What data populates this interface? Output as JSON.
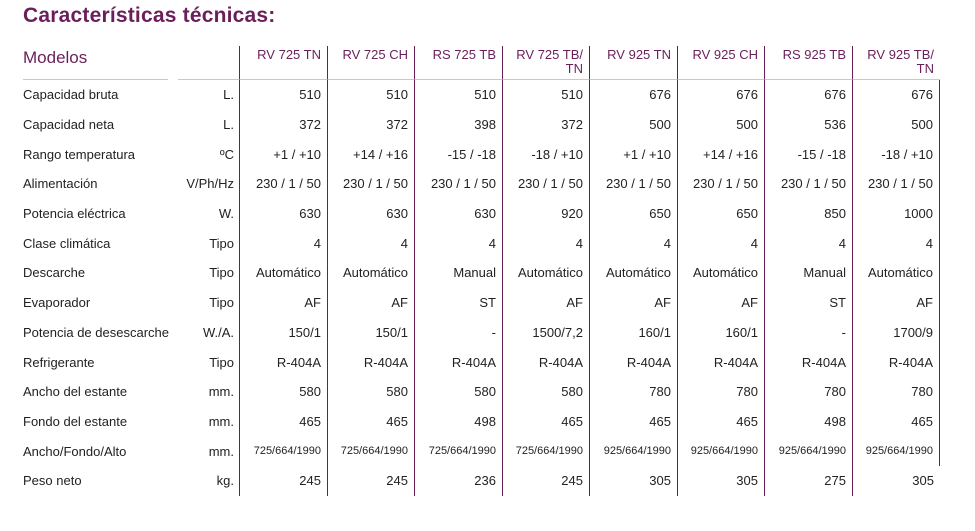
{
  "title": "Características técnicas:",
  "header": {
    "label": "Modelos",
    "models": [
      "RV 725 TN",
      "RV 725 CH",
      "RS 725 TB",
      "RV 725 TB/ TN",
      "RV 925 TN",
      "RV 925 CH",
      "RS 925 TB",
      "RV 925 TB/ TN"
    ]
  },
  "rows": [
    {
      "label": "Capacidad bruta",
      "unit": "L.",
      "values": [
        "510",
        "510",
        "510",
        "510",
        "676",
        "676",
        "676",
        "676"
      ]
    },
    {
      "label": "Capacidad neta",
      "unit": "L.",
      "values": [
        "372",
        "372",
        "398",
        "372",
        "500",
        "500",
        "536",
        "500"
      ]
    },
    {
      "label": "Rango temperatura",
      "unit": "ºC",
      "values": [
        "+1 / +10",
        "+14 / +16",
        "-15 / -18",
        "-18 / +10",
        "+1 / +10",
        "+14 / +16",
        "-15 / -18",
        "-18 / +10"
      ]
    },
    {
      "label": "Alimentación",
      "unit": "V/Ph/Hz",
      "values": [
        "230 / 1 / 50",
        "230 / 1 / 50",
        "230 / 1 / 50",
        "230 / 1 / 50",
        "230 / 1 / 50",
        "230 / 1 / 50",
        "230 / 1 / 50",
        "230 / 1 / 50"
      ]
    },
    {
      "label": "Potencia eléctrica",
      "unit": "W.",
      "values": [
        "630",
        "630",
        "630",
        "920",
        "650",
        "650",
        "850",
        "1000"
      ]
    },
    {
      "label": "Clase climática",
      "unit": "Tipo",
      "values": [
        "4",
        "4",
        "4",
        "4",
        "4",
        "4",
        "4",
        "4"
      ]
    },
    {
      "label": "Descarche",
      "unit": "Tipo",
      "values": [
        "Automático",
        "Automático",
        "Manual",
        "Automático",
        "Automático",
        "Automático",
        "Manual",
        "Automático"
      ]
    },
    {
      "label": "Evaporador",
      "unit": "Tipo",
      "values": [
        "AF",
        "AF",
        "ST",
        "AF",
        "AF",
        "AF",
        "ST",
        "AF"
      ]
    },
    {
      "label": "Potencia de desescarche",
      "unit": "W./A.",
      "values": [
        "150/1",
        "150/1",
        "-",
        "1500/7,2",
        "160/1",
        "160/1",
        "-",
        "1700/9"
      ]
    },
    {
      "label": "Refrigerante",
      "unit": "Tipo",
      "values": [
        "R-404A",
        "R-404A",
        "R-404A",
        "R-404A",
        "R-404A",
        "R-404A",
        "R-404A",
        "R-404A"
      ]
    },
    {
      "label": "Ancho del estante",
      "unit": "mm.",
      "values": [
        "580",
        "580",
        "580",
        "580",
        "780",
        "780",
        "780",
        "780"
      ]
    },
    {
      "label": "Fondo del estante",
      "unit": "mm.",
      "values": [
        "465",
        "465",
        "498",
        "465",
        "465",
        "465",
        "498",
        "465"
      ]
    },
    {
      "label": "Ancho/Fondo/Alto",
      "unit": "mm.",
      "values": [
        "725/664/1990",
        "725/664/1990",
        "725/664/1990",
        "725/664/1990",
        "925/664/1990",
        "925/664/1990",
        "925/664/1990",
        "925/664/1990"
      ]
    },
    {
      "label": "Peso neto",
      "unit": "kg.",
      "values": [
        "245",
        "245",
        "236",
        "245",
        "305",
        "305",
        "275",
        "305"
      ]
    }
  ],
  "colors": {
    "accent": "#6b1f5a",
    "text": "#222222",
    "rule": "#c9c9c9"
  }
}
